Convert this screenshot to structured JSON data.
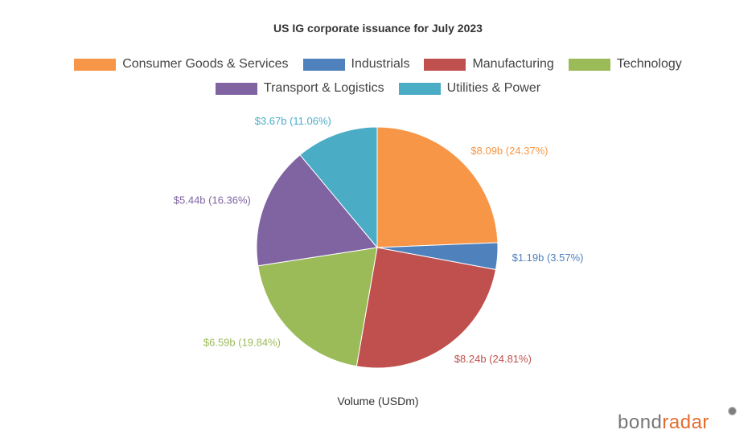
{
  "chart_data": {
    "type": "pie",
    "title": "US IG corporate issuance for July 2023",
    "xlabel": "Volume (USDm)",
    "legend_position": "top",
    "slices": [
      {
        "name": "Consumer Goods & Services",
        "value": 8.09,
        "percent": 24.37,
        "label": "$8.09b (24.37%)",
        "color": "#F79646"
      },
      {
        "name": "Industrials",
        "value": 1.19,
        "percent": 3.57,
        "label": "$1.19b (3.57%)",
        "color": "#4F81BD"
      },
      {
        "name": "Manufacturing",
        "value": 8.24,
        "percent": 24.81,
        "label": "$8.24b (24.81%)",
        "color": "#C0504D"
      },
      {
        "name": "Technology",
        "value": 6.59,
        "percent": 19.84,
        "label": "$6.59b (19.84%)",
        "color": "#9BBB59"
      },
      {
        "name": "Transport & Logistics",
        "value": 5.44,
        "percent": 16.36,
        "label": "$5.44b (16.36%)",
        "color": "#8064A2"
      },
      {
        "name": "Utilities & Power",
        "value": 3.67,
        "percent": 11.06,
        "label": "$3.67b (11.06%)",
        "color": "#4BACC6"
      }
    ]
  },
  "brand": {
    "prefix": "bond",
    "accent": "radar"
  }
}
